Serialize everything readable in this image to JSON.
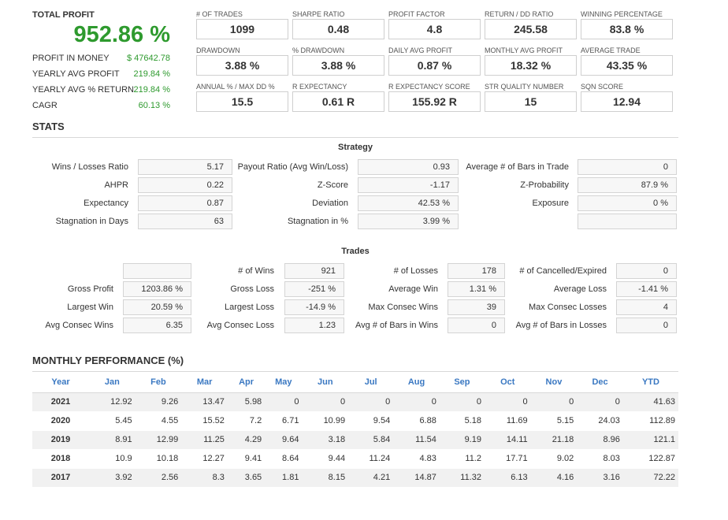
{
  "summary": {
    "total_profit_label": "TOTAL PROFIT",
    "total_profit_value": "952.86 %",
    "rows": [
      {
        "label": "PROFIT IN MONEY",
        "value": "$ 47642.78"
      },
      {
        "label": "YEARLY AVG PROFIT",
        "value": "219.84 %"
      },
      {
        "label": "YEARLY AVG % RETURN",
        "value": "219.84 %"
      },
      {
        "label": "CAGR",
        "value": "60.13 %"
      }
    ]
  },
  "kpis": [
    {
      "label": "# OF TRADES",
      "value": "1099"
    },
    {
      "label": "SHARPE RATIO",
      "value": "0.48"
    },
    {
      "label": "PROFIT FACTOR",
      "value": "4.8"
    },
    {
      "label": "RETURN / DD RATIO",
      "value": "245.58"
    },
    {
      "label": "WINNING PERCENTAGE",
      "value": "83.8 %"
    },
    {
      "label": "DRAWDOWN",
      "value": "3.88 %"
    },
    {
      "label": "% DRAWDOWN",
      "value": "3.88 %"
    },
    {
      "label": "DAILY AVG PROFIT",
      "value": "0.87 %"
    },
    {
      "label": "MONTHLY AVG PROFIT",
      "value": "18.32 %"
    },
    {
      "label": "AVERAGE TRADE",
      "value": "43.35 %"
    },
    {
      "label": "ANNUAL % / MAX DD %",
      "value": "15.5"
    },
    {
      "label": "R EXPECTANCY",
      "value": "0.61 R"
    },
    {
      "label": "R EXPECTANCY SCORE",
      "value": "155.92 R"
    },
    {
      "label": "STR QUALITY NUMBER",
      "value": "15"
    },
    {
      "label": "SQN SCORE",
      "value": "12.94"
    }
  ],
  "stats_title": "STATS",
  "strategy": {
    "title": "Strategy",
    "rows": [
      [
        {
          "label": "Wins / Losses Ratio",
          "value": "5.17"
        },
        {
          "label": "Payout Ratio (Avg Win/Loss)",
          "value": "0.93"
        },
        {
          "label": "Average # of Bars in Trade",
          "value": "0"
        }
      ],
      [
        {
          "label": "AHPR",
          "value": "0.22"
        },
        {
          "label": "Z-Score",
          "value": "-1.17"
        },
        {
          "label": "Z-Probability",
          "value": "87.9 %"
        }
      ],
      [
        {
          "label": "Expectancy",
          "value": "0.87"
        },
        {
          "label": "Deviation",
          "value": "42.53 %"
        },
        {
          "label": "Exposure",
          "value": "0 %"
        }
      ],
      [
        {
          "label": "Stagnation in Days",
          "value": "63"
        },
        {
          "label": "Stagnation in %",
          "value": "3.99 %"
        },
        {
          "label": "",
          "value": ""
        }
      ]
    ]
  },
  "trades": {
    "title": "Trades",
    "rows": [
      [
        {
          "label": "",
          "value": ""
        },
        {
          "label": "# of Wins",
          "value": "921"
        },
        {
          "label": "# of Losses",
          "value": "178"
        },
        {
          "label": "# of Cancelled/Expired",
          "value": "0"
        }
      ],
      [
        {
          "label": "Gross Profit",
          "value": "1203.86 %"
        },
        {
          "label": "Gross Loss",
          "value": "-251 %"
        },
        {
          "label": "Average Win",
          "value": "1.31 %"
        },
        {
          "label": "Average Loss",
          "value": "-1.41 %"
        }
      ],
      [
        {
          "label": "Largest Win",
          "value": "20.59 %"
        },
        {
          "label": "Largest Loss",
          "value": "-14.9 %"
        },
        {
          "label": "Max Consec Wins",
          "value": "39"
        },
        {
          "label": "Max Consec Losses",
          "value": "4"
        }
      ],
      [
        {
          "label": "Avg Consec Wins",
          "value": "6.35"
        },
        {
          "label": "Avg Consec Loss",
          "value": "1.23"
        },
        {
          "label": "Avg # of Bars in Wins",
          "value": "0"
        },
        {
          "label": "Avg # of Bars in Losses",
          "value": "0"
        }
      ]
    ]
  },
  "monthly": {
    "title": "MONTHLY PERFORMANCE (%)",
    "headers": [
      "Year",
      "Jan",
      "Feb",
      "Mar",
      "Apr",
      "May",
      "Jun",
      "Jul",
      "Aug",
      "Sep",
      "Oct",
      "Nov",
      "Dec",
      "YTD"
    ],
    "rows": [
      [
        "2021",
        "12.92",
        "9.26",
        "13.47",
        "5.98",
        "0",
        "0",
        "0",
        "0",
        "0",
        "0",
        "0",
        "0",
        "41.63"
      ],
      [
        "2020",
        "5.45",
        "4.55",
        "15.52",
        "7.2",
        "6.71",
        "10.99",
        "9.54",
        "6.88",
        "5.18",
        "11.69",
        "5.15",
        "24.03",
        "112.89"
      ],
      [
        "2019",
        "8.91",
        "12.99",
        "11.25",
        "4.29",
        "9.64",
        "3.18",
        "5.84",
        "11.54",
        "9.19",
        "14.11",
        "21.18",
        "8.96",
        "121.1"
      ],
      [
        "2018",
        "10.9",
        "10.18",
        "12.27",
        "9.41",
        "8.64",
        "9.44",
        "11.24",
        "4.83",
        "11.2",
        "17.71",
        "9.02",
        "8.03",
        "122.87"
      ],
      [
        "2017",
        "3.92",
        "2.56",
        "8.3",
        "3.65",
        "1.81",
        "8.15",
        "4.21",
        "14.87",
        "11.32",
        "6.13",
        "4.16",
        "3.16",
        "72.22"
      ]
    ]
  }
}
